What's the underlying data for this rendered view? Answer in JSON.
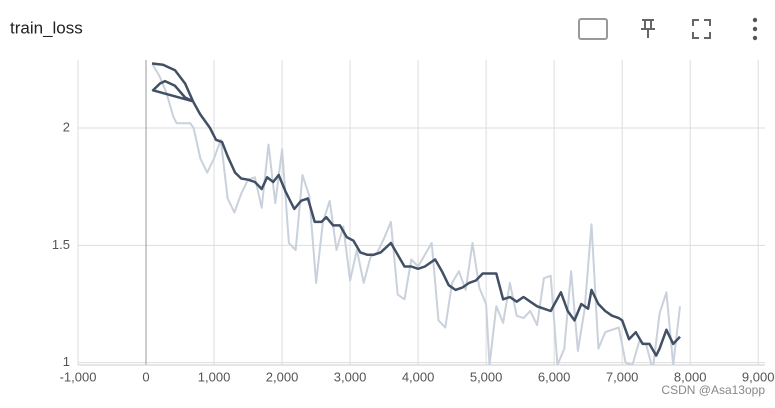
{
  "chart_data": {
    "type": "line",
    "title": "train_loss",
    "watermark": "CSDN @Asa13opp",
    "xlim": [
      -1000,
      9100
    ],
    "ylim": [
      0.99,
      2.29
    ],
    "xticks": [
      {
        "value": -1000,
        "label": "-1,000"
      },
      0,
      {
        "value": 1000,
        "label": "1,000"
      },
      {
        "value": 2000,
        "label": "2,000"
      },
      {
        "value": 3000,
        "label": "3,000"
      },
      {
        "value": 4000,
        "label": "4,000"
      },
      {
        "value": 5000,
        "label": "5,000"
      },
      {
        "value": 6000,
        "label": "6,000"
      },
      {
        "value": 7000,
        "label": "7,000"
      },
      {
        "value": 8000,
        "label": "8,000"
      },
      {
        "value": 9000,
        "label": "9,000"
      }
    ],
    "yticks": [
      1,
      1.5,
      2
    ],
    "grid": true,
    "series": [
      {
        "color": "#c9d1dc",
        "x": [
          100,
          200,
          300,
          400,
          450,
          550,
          650,
          700,
          800,
          900,
          1000,
          1100,
          1200,
          1300,
          1400,
          1500,
          1600,
          1700,
          1800,
          1900,
          2000,
          2100,
          2200,
          2300,
          2400,
          2500,
          2600,
          2700,
          2800,
          2900,
          3000,
          3100,
          3200,
          3300,
          3400,
          3500,
          3600,
          3700,
          3800,
          3900,
          4000,
          4100,
          4200,
          4300,
          4400,
          4500,
          4600,
          4700,
          4800,
          4900,
          5000,
          5050,
          5150,
          5250,
          5350,
          5450,
          5550,
          5650,
          5750,
          5850,
          5950,
          6050,
          6150,
          6250,
          6350,
          6450,
          6550,
          6650,
          6750,
          6850,
          6950,
          7050,
          7150,
          7250,
          7350,
          7450,
          7550,
          7650,
          7750,
          7850
        ],
        "values": [
          2.27,
          2.22,
          2.15,
          2.05,
          2.02,
          2.02,
          2.02,
          2.0,
          1.87,
          1.81,
          1.87,
          1.95,
          1.7,
          1.64,
          1.72,
          1.78,
          1.79,
          1.66,
          1.93,
          1.68,
          1.91,
          1.51,
          1.48,
          1.8,
          1.71,
          1.34,
          1.6,
          1.69,
          1.48,
          1.58,
          1.35,
          1.48,
          1.34,
          1.45,
          1.47,
          1.53,
          1.6,
          1.29,
          1.27,
          1.44,
          1.41,
          1.46,
          1.51,
          1.18,
          1.15,
          1.34,
          1.39,
          1.31,
          1.51,
          1.32,
          1.25,
          0.99,
          1.24,
          1.17,
          1.34,
          1.2,
          1.19,
          1.22,
          1.16,
          1.36,
          1.37,
          0.99,
          1.06,
          1.39,
          1.05,
          1.23,
          1.59,
          1.06,
          1.13,
          1.14,
          1.15,
          1.0,
          0.99,
          1.09,
          1.08,
          0.97,
          1.21,
          1.3,
          0.99,
          1.24
        ]
      },
      {
        "color": "#425066",
        "x": [
          88,
          250,
          426,
          574,
          691,
          574,
          426,
          279,
          206,
          103,
          691,
          794,
          941,
          1029,
          1118,
          1200,
          1309,
          1400,
          1500,
          1600,
          1700,
          1780,
          1870,
          1950,
          2050,
          2180,
          2280,
          2380,
          2480,
          2580,
          2650,
          2750,
          2850,
          2950,
          3050,
          3150,
          3250,
          3350,
          3450,
          3600,
          3700,
          3800,
          3900,
          4000,
          4100,
          4250,
          4350,
          4450,
          4550,
          4650,
          4750,
          4850,
          4950,
          5050,
          5150,
          5250,
          5350,
          5450,
          5550,
          5650,
          5750,
          5850,
          5950,
          6100,
          6200,
          6300,
          6400,
          6500,
          6550,
          6650,
          6750,
          6850,
          6950,
          7000,
          7100,
          7200,
          7300,
          7400,
          7500,
          7550,
          7650,
          7750,
          7850
        ],
        "values": [
          2.275,
          2.27,
          2.246,
          2.19,
          2.114,
          2.13,
          2.18,
          2.2,
          2.19,
          2.161,
          2.114,
          2.06,
          2.0,
          1.95,
          1.94,
          1.88,
          1.81,
          1.785,
          1.78,
          1.77,
          1.74,
          1.79,
          1.77,
          1.8,
          1.73,
          1.655,
          1.69,
          1.7,
          1.6,
          1.6,
          1.62,
          1.585,
          1.585,
          1.535,
          1.52,
          1.47,
          1.46,
          1.46,
          1.47,
          1.51,
          1.46,
          1.41,
          1.41,
          1.4,
          1.41,
          1.44,
          1.39,
          1.33,
          1.31,
          1.32,
          1.34,
          1.35,
          1.38,
          1.38,
          1.38,
          1.27,
          1.28,
          1.26,
          1.28,
          1.26,
          1.24,
          1.23,
          1.22,
          1.3,
          1.22,
          1.18,
          1.25,
          1.23,
          1.31,
          1.25,
          1.22,
          1.2,
          1.19,
          1.18,
          1.1,
          1.13,
          1.08,
          1.08,
          1.03,
          1.06,
          1.14,
          1.08,
          1.11
        ]
      }
    ]
  }
}
